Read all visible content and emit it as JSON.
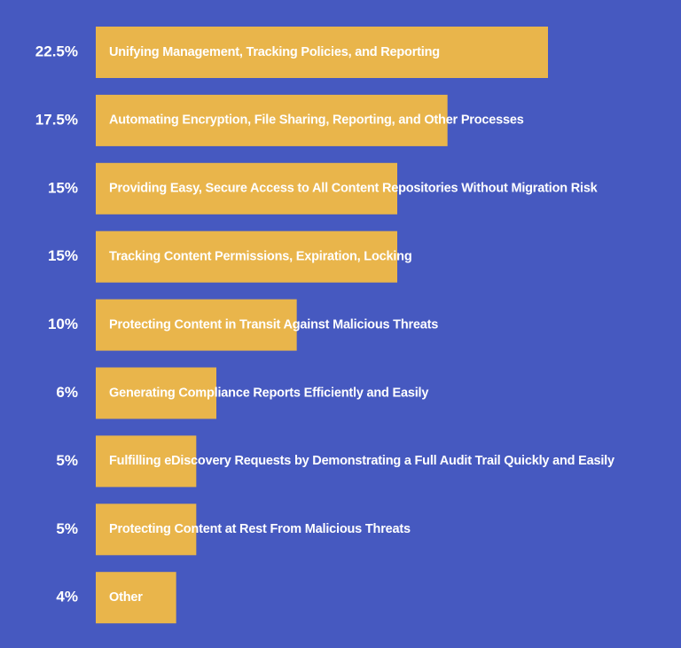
{
  "chart_data": {
    "type": "bar",
    "orientation": "horizontal",
    "categories": [
      "Unifying Management, Tracking Policies, and Reporting",
      "Automating Encryption, File Sharing, Reporting, and Other Processes",
      "Providing Easy, Secure Access to All Content Repositories Without Migration Risk",
      "Tracking Content Permissions, Expiration, Locking",
      "Protecting Content in Transit Against Malicious Threats",
      "Generating Compliance Reports Efficiently and Easily",
      "Fulfilling eDiscovery Requests by Demonstrating a Full Audit Trail Quickly and Easily",
      "Protecting Content at Rest From Malicious Threats",
      "Other"
    ],
    "values": [
      22.5,
      17.5,
      15,
      15,
      10,
      6,
      5,
      5,
      4
    ],
    "value_labels": [
      "22.5%",
      "17.5%",
      "15%",
      "15%",
      "10%",
      "6%",
      "5%",
      "5%",
      "4%"
    ],
    "color": "#e9b54b"
  }
}
